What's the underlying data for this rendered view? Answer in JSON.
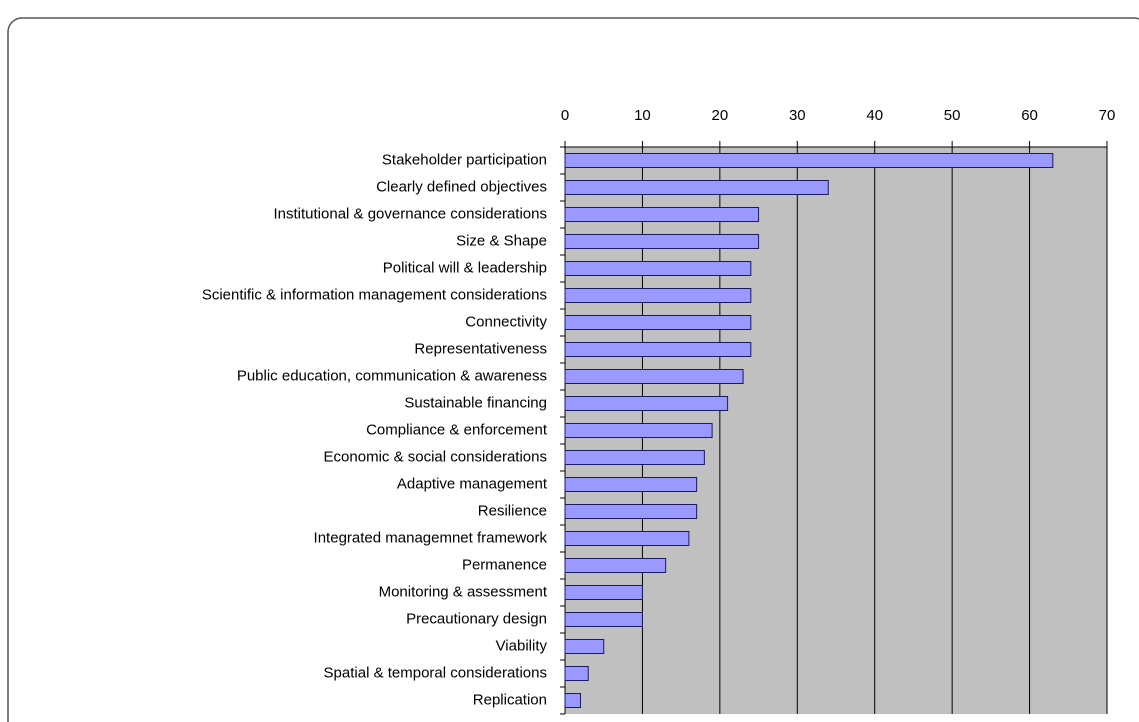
{
  "chart_data": {
    "type": "bar",
    "orientation": "horizontal",
    "categories": [
      "Stakeholder participation",
      "Clearly defined objectives",
      "Institutional & governance considerations",
      "Size & Shape",
      "Political will & leadership",
      "Scientific & information management considerations",
      "Connectivity",
      "Representativeness",
      "Public education, communication & awareness",
      "Sustainable financing",
      "Compliance & enforcement",
      "Economic & social considerations",
      "Adaptive management",
      "Resilience",
      "Integrated managemnet framework",
      "Permanence",
      "Monitoring & assessment",
      "Precautionary design",
      "Viability",
      "Spatial & temporal considerations",
      "Replication"
    ],
    "values": [
      63,
      34,
      25,
      25,
      24,
      24,
      24,
      24,
      23,
      21,
      19,
      18,
      17,
      17,
      16,
      13,
      10,
      10,
      5,
      3,
      2
    ],
    "color": "#9999ff",
    "xlim": [
      0,
      70
    ],
    "xticks": [
      0,
      10,
      20,
      30,
      40,
      50,
      60,
      70
    ],
    "grid": true
  }
}
